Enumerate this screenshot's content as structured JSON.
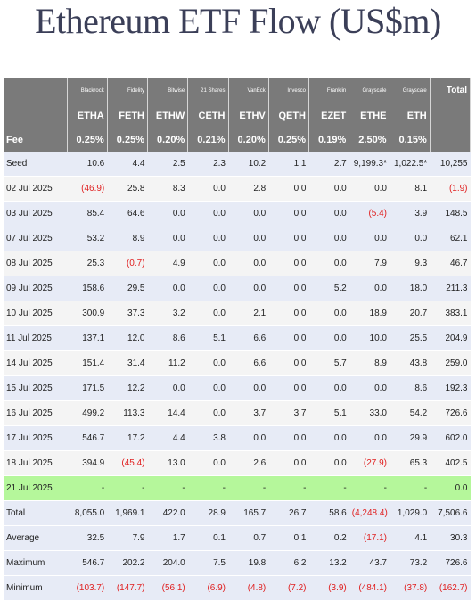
{
  "title": "Ethereum ETF Flow (US$m)",
  "colors": {
    "header_bg": "#7a7a7a",
    "row_blue": "#e7ebf6",
    "row_grey": "#f4f4f4",
    "highlight": "#b5f79b",
    "negative": "#e02020",
    "title": "#3b3f58"
  },
  "table": {
    "issuers": [
      "Blackrock",
      "Fidelity",
      "Bitwise",
      "21 Shares",
      "VanEck",
      "Invesco",
      "Franklin",
      "Grayscale",
      "Grayscale"
    ],
    "total_label": "Total",
    "tickers": [
      "ETHA",
      "FETH",
      "ETHW",
      "CETH",
      "ETHV",
      "QETH",
      "EZET",
      "ETHE",
      "ETH"
    ],
    "fee_label": "Fee",
    "fees": [
      "0.25%",
      "0.25%",
      "0.20%",
      "0.21%",
      "0.20%",
      "0.25%",
      "0.19%",
      "2.50%",
      "0.15%"
    ],
    "rows": [
      {
        "label": "Seed",
        "values": [
          "10.6",
          "4.4",
          "2.5",
          "2.3",
          "10.2",
          "1.1",
          "2.7",
          "9,199.3*",
          "1,022.5*",
          "10,255"
        ],
        "style": "odd"
      },
      {
        "label": "02 Jul 2025",
        "values": [
          "(46.9)",
          "25.8",
          "8.3",
          "0.0",
          "2.8",
          "0.0",
          "0.0",
          "0.0",
          "8.1",
          "(1.9)"
        ],
        "style": "even"
      },
      {
        "label": "03 Jul 2025",
        "values": [
          "85.4",
          "64.6",
          "0.0",
          "0.0",
          "0.0",
          "0.0",
          "0.0",
          "(5.4)",
          "3.9",
          "148.5"
        ],
        "style": "odd"
      },
      {
        "label": "07 Jul 2025",
        "values": [
          "53.2",
          "8.9",
          "0.0",
          "0.0",
          "0.0",
          "0.0",
          "0.0",
          "0.0",
          "0.0",
          "62.1"
        ],
        "style": "odd"
      },
      {
        "label": "08 Jul 2025",
        "values": [
          "25.3",
          "(0.7)",
          "4.9",
          "0.0",
          "0.0",
          "0.0",
          "0.0",
          "7.9",
          "9.3",
          "46.7"
        ],
        "style": "even"
      },
      {
        "label": "09 Jul 2025",
        "values": [
          "158.6",
          "29.5",
          "0.0",
          "0.0",
          "0.0",
          "0.0",
          "5.2",
          "0.0",
          "18.0",
          "211.3"
        ],
        "style": "odd"
      },
      {
        "label": "10 Jul 2025",
        "values": [
          "300.9",
          "37.3",
          "3.2",
          "0.0",
          "2.1",
          "0.0",
          "0.0",
          "18.9",
          "20.7",
          "383.1"
        ],
        "style": "even"
      },
      {
        "label": "11 Jul 2025",
        "values": [
          "137.1",
          "12.0",
          "8.6",
          "5.1",
          "6.6",
          "0.0",
          "0.0",
          "10.0",
          "25.5",
          "204.9"
        ],
        "style": "odd"
      },
      {
        "label": "14 Jul 2025",
        "values": [
          "151.4",
          "31.4",
          "11.2",
          "0.0",
          "6.6",
          "0.0",
          "5.7",
          "8.9",
          "43.8",
          "259.0"
        ],
        "style": "even"
      },
      {
        "label": "15 Jul 2025",
        "values": [
          "171.5",
          "12.2",
          "0.0",
          "0.0",
          "0.0",
          "0.0",
          "0.0",
          "0.0",
          "8.6",
          "192.3"
        ],
        "style": "odd"
      },
      {
        "label": "16 Jul 2025",
        "values": [
          "499.2",
          "113.3",
          "14.4",
          "0.0",
          "3.7",
          "3.7",
          "5.1",
          "33.0",
          "54.2",
          "726.6"
        ],
        "style": "even"
      },
      {
        "label": "17 Jul 2025",
        "values": [
          "546.7",
          "17.2",
          "4.4",
          "3.8",
          "0.0",
          "0.0",
          "0.0",
          "0.0",
          "29.9",
          "602.0"
        ],
        "style": "odd"
      },
      {
        "label": "18 Jul 2025",
        "values": [
          "394.9",
          "(45.4)",
          "13.0",
          "0.0",
          "2.6",
          "0.0",
          "0.0",
          "(27.9)",
          "65.3",
          "402.5"
        ],
        "style": "even"
      },
      {
        "label": "21 Jul 2025",
        "values": [
          "-",
          "-",
          "-",
          "-",
          "-",
          "-",
          "-",
          "-",
          "-",
          "0.0"
        ],
        "style": "hl"
      },
      {
        "label": "Total",
        "values": [
          "8,055.0",
          "1,969.1",
          "422.0",
          "28.9",
          "165.7",
          "26.7",
          "58.6",
          "(4,248.4)",
          "1,029.0",
          "7,506.6"
        ],
        "style": "sum"
      },
      {
        "label": "Average",
        "values": [
          "32.5",
          "7.9",
          "1.7",
          "0.1",
          "0.7",
          "0.1",
          "0.2",
          "(17.1)",
          "4.1",
          "30.3"
        ],
        "style": "sum"
      },
      {
        "label": "Maximum",
        "values": [
          "546.7",
          "202.2",
          "204.0",
          "7.5",
          "19.8",
          "6.2",
          "13.2",
          "43.7",
          "73.2",
          "726.6"
        ],
        "style": "sum"
      },
      {
        "label": "Minimum",
        "values": [
          "(103.7)",
          "(147.7)",
          "(56.1)",
          "(6.9)",
          "(4.8)",
          "(7.2)",
          "(3.9)",
          "(484.1)",
          "(37.8)",
          "(162.7)"
        ],
        "style": "sum"
      }
    ]
  }
}
